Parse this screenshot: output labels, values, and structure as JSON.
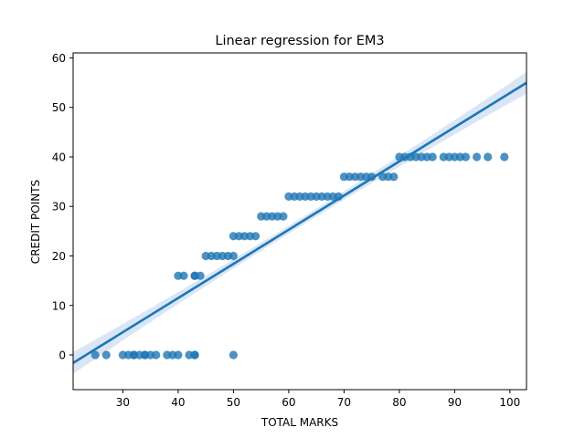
{
  "chart_data": {
    "type": "scatter",
    "title": "Linear regression for EM3",
    "xlabel": "TOTAL MARKS",
    "ylabel": "CREDIT POINTS",
    "xlim": [
      21,
      103
    ],
    "ylim": [
      -7,
      61
    ],
    "xticks": [
      30,
      40,
      50,
      60,
      70,
      80,
      90,
      100
    ],
    "yticks": [
      0,
      10,
      20,
      30,
      40,
      50,
      60
    ],
    "grid": false,
    "legend": "none",
    "colors": {
      "points": "#1f77b4",
      "line": "#1f77b4",
      "band": "#aec7e8"
    },
    "series": [
      {
        "points": [
          [
            25,
            0
          ],
          [
            27,
            0
          ],
          [
            30,
            0
          ],
          [
            31,
            0
          ],
          [
            32,
            0
          ],
          [
            32,
            0
          ],
          [
            33,
            0
          ],
          [
            34,
            0
          ],
          [
            34,
            0
          ],
          [
            35,
            0
          ],
          [
            36,
            0
          ],
          [
            38,
            0
          ],
          [
            39,
            0
          ],
          [
            40,
            0
          ],
          [
            42,
            0
          ],
          [
            43,
            0
          ],
          [
            43,
            0
          ],
          [
            50,
            0
          ],
          [
            40,
            16
          ],
          [
            41,
            16
          ],
          [
            43,
            16
          ],
          [
            44,
            16
          ],
          [
            43,
            16
          ],
          [
            45,
            20
          ],
          [
            46,
            20
          ],
          [
            47,
            20
          ],
          [
            48,
            20
          ],
          [
            49,
            20
          ],
          [
            50,
            20
          ],
          [
            50,
            24
          ],
          [
            51,
            24
          ],
          [
            52,
            24
          ],
          [
            53,
            24
          ],
          [
            54,
            24
          ],
          [
            55,
            28
          ],
          [
            56,
            28
          ],
          [
            57,
            28
          ],
          [
            58,
            28
          ],
          [
            59,
            28
          ],
          [
            60,
            32
          ],
          [
            61,
            32
          ],
          [
            62,
            32
          ],
          [
            63,
            32
          ],
          [
            64,
            32
          ],
          [
            65,
            32
          ],
          [
            66,
            32
          ],
          [
            67,
            32
          ],
          [
            68,
            32
          ],
          [
            69,
            32
          ],
          [
            70,
            36
          ],
          [
            71,
            36
          ],
          [
            72,
            36
          ],
          [
            73,
            36
          ],
          [
            74,
            36
          ],
          [
            75,
            36
          ],
          [
            77,
            36
          ],
          [
            78,
            36
          ],
          [
            79,
            36
          ],
          [
            80,
            40
          ],
          [
            81,
            40
          ],
          [
            82,
            40
          ],
          [
            83,
            40
          ],
          [
            84,
            40
          ],
          [
            85,
            40
          ],
          [
            86,
            40
          ],
          [
            88,
            40
          ],
          [
            89,
            40
          ],
          [
            90,
            40
          ],
          [
            91,
            40
          ],
          [
            92,
            40
          ],
          [
            94,
            40
          ],
          [
            96,
            40
          ],
          [
            99,
            40
          ]
        ]
      }
    ],
    "regression": {
      "x_range": [
        21,
        103
      ],
      "intercept": -16.1,
      "slope": 0.69,
      "ci_halfwidth_ends": 2.2,
      "ci_halfwidth_center": 0.8
    }
  }
}
